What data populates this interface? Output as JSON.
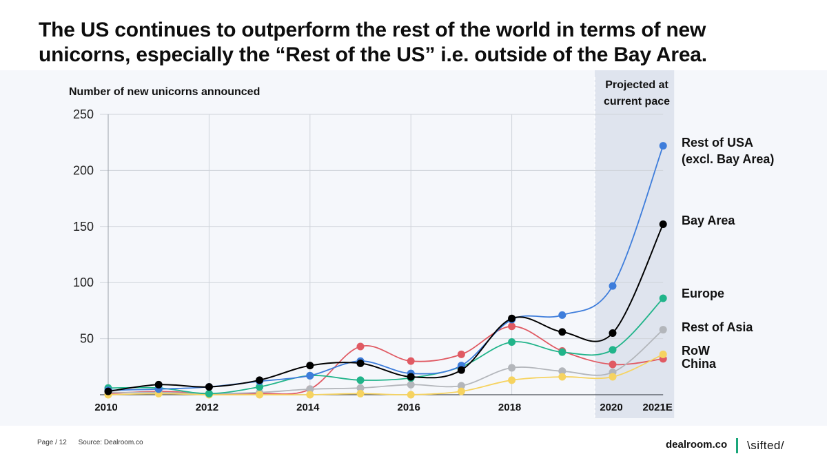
{
  "title": "The US continues to outperform the rest of the world in terms of new unicorns, especially the “Rest of the US” i.e. outside of the Bay Area.",
  "footer": {
    "page": "Page / 12",
    "source": "Source: Dealroom.co",
    "brand_primary": "dealroom.co",
    "brand_secondary": "\\sifted/"
  },
  "chart_data": {
    "type": "line",
    "ylabel": "Number of new unicorns announced",
    "ylim": [
      0,
      250
    ],
    "yticks": [
      "250",
      "200",
      "150",
      "100",
      "50"
    ],
    "x": [
      "2010",
      "2011",
      "2012",
      "2013",
      "2014",
      "2015",
      "2016",
      "2017",
      "2018",
      "2019",
      "2020",
      "2021E"
    ],
    "x_tick_labels": [
      "2010",
      "2012",
      "2014",
      "2016",
      "2018",
      "2020",
      "2021E"
    ],
    "projection_label": [
      "Projected at",
      "current pace"
    ],
    "series": [
      {
        "name": "China",
        "label_lines": [
          "China"
        ],
        "color": "#e05a63",
        "values": [
          1,
          3,
          1,
          1,
          5,
          43,
          30,
          36,
          61,
          39,
          27,
          32
        ]
      },
      {
        "name": "Rest of Asia",
        "label_lines": [
          "Rest of Asia"
        ],
        "color": "#b3b6bb",
        "values": [
          2,
          2,
          1,
          2,
          5,
          6,
          9,
          8,
          24,
          21,
          20,
          58
        ]
      },
      {
        "name": "RoW",
        "label_lines": [
          "RoW"
        ],
        "color": "#f6d360",
        "values": [
          0,
          1,
          0,
          0,
          0,
          1,
          0,
          3,
          13,
          16,
          16,
          36
        ]
      },
      {
        "name": "Europe",
        "label_lines": [
          "Europe"
        ],
        "color": "#21b48a",
        "values": [
          6,
          6,
          1,
          7,
          17,
          13,
          15,
          25,
          47,
          38,
          40,
          86
        ]
      },
      {
        "name": "Rest of USA (excl. Bay Area)",
        "label_lines": [
          "Rest of USA",
          "(excl. Bay Area)"
        ],
        "color": "#3e7ddb",
        "values": [
          4,
          5,
          7,
          12,
          17,
          30,
          19,
          26,
          67,
          71,
          97,
          222
        ]
      },
      {
        "name": "Bay Area",
        "label_lines": [
          "Bay Area"
        ],
        "color": "#000000",
        "values": [
          3,
          9,
          7,
          13,
          26,
          28,
          16,
          22,
          68,
          56,
          55,
          152
        ]
      }
    ]
  }
}
